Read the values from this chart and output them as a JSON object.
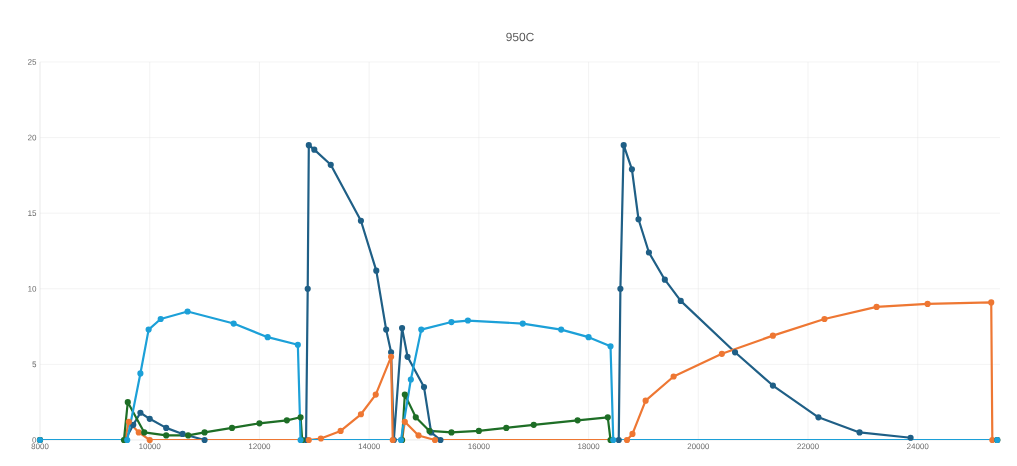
{
  "chart_data": {
    "type": "line",
    "title": "950C",
    "xlim": [
      8000,
      25500
    ],
    "xticks": [
      8000,
      10000,
      12000,
      14000,
      16000,
      18000,
      20000,
      22000,
      24000
    ],
    "ylim": [
      0,
      25
    ],
    "yticks": [
      0,
      5,
      10,
      15,
      20,
      25
    ],
    "grid": true,
    "marker": "circle",
    "line_style": "solid",
    "series": [
      {
        "color": "#1f5f86",
        "x": [
          8000,
          9550,
          9700,
          9830,
          10000,
          10300,
          10600,
          11000,
          12850,
          12880,
          12900,
          13000,
          13300,
          13850,
          14130,
          14310,
          14400,
          14450,
          14600,
          14700,
          15000,
          15130,
          15300,
          18550,
          18580,
          18640,
          18790,
          18910,
          19100,
          19390,
          19680,
          20670,
          21360,
          22190,
          22940,
          23870
        ],
        "values": [
          0,
          0,
          1.0,
          1.8,
          1.4,
          0.8,
          0.4,
          0,
          0,
          10,
          19.5,
          19.2,
          18.2,
          14.5,
          11.2,
          7.3,
          5.8,
          0,
          7.4,
          5.5,
          3.5,
          0.5,
          0,
          0,
          10,
          19.5,
          17.9,
          14.6,
          12.4,
          10.6,
          9.2,
          5.8,
          3.6,
          1.5,
          0.5,
          0.15
        ]
      },
      {
        "color": "#ee7733",
        "x": [
          8000,
          9550,
          9620,
          9800,
          10000,
          12900,
          13120,
          13480,
          13850,
          14120,
          14400,
          14430,
          14600,
          14650,
          14900,
          15200,
          18700,
          18800,
          19040,
          19550,
          20430,
          21360,
          22300,
          23250,
          24180,
          25340,
          25360,
          25450
        ],
        "values": [
          0,
          0,
          1.2,
          0.5,
          0,
          0,
          0.1,
          0.6,
          1.7,
          3.0,
          5.5,
          0,
          0,
          1.2,
          0.3,
          0,
          0,
          0.4,
          2.6,
          4.2,
          5.7,
          6.9,
          8.0,
          8.8,
          9.0,
          9.1,
          0,
          0
        ]
      },
      {
        "color": "#1e6e26",
        "x": [
          8000,
          9530,
          9600,
          9900,
          10300,
          10700,
          11000,
          11500,
          12000,
          12500,
          12750,
          12780,
          14600,
          14650,
          14850,
          15100,
          15500,
          16000,
          16500,
          17000,
          17800,
          18350,
          18400,
          25450
        ],
        "values": [
          0,
          0,
          2.5,
          0.5,
          0.3,
          0.3,
          0.5,
          0.8,
          1.1,
          1.3,
          1.5,
          0,
          0,
          3.0,
          1.5,
          0.6,
          0.5,
          0.6,
          0.8,
          1.0,
          1.3,
          1.5,
          0,
          0
        ]
      },
      {
        "color": "#1ca0d8",
        "x": [
          8000,
          9590,
          9830,
          9980,
          10200,
          10690,
          11530,
          12150,
          12700,
          12750,
          14580,
          14760,
          14950,
          15500,
          15800,
          16800,
          17500,
          18000,
          18400,
          18450,
          25450
        ],
        "values": [
          0,
          0,
          4.4,
          7.3,
          8.0,
          8.5,
          7.7,
          6.8,
          6.3,
          0,
          0,
          4.0,
          7.3,
          7.8,
          7.9,
          7.7,
          7.3,
          6.8,
          6.2,
          0,
          0
        ]
      }
    ]
  }
}
